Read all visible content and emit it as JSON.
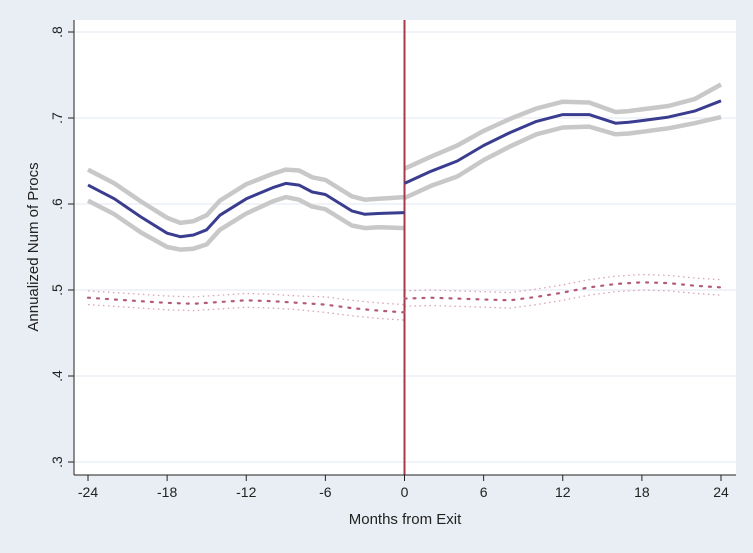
{
  "chart_data": {
    "type": "line",
    "xlabel": "Months from Exit",
    "ylabel": "Annualized Num of Procs",
    "xlim": [
      -24,
      24
    ],
    "ylim": [
      0.3,
      0.8
    ],
    "x_ticks": [
      -24,
      -18,
      -12,
      -6,
      0,
      6,
      12,
      18,
      24
    ],
    "x_tick_labels": [
      "-24",
      "-18",
      "-12",
      "-6",
      "0",
      "6",
      "12",
      "18",
      "24"
    ],
    "y_ticks": [
      0.3,
      0.4,
      0.5,
      0.6,
      0.7,
      0.8
    ],
    "y_tick_labels": [
      ".3",
      ".4",
      ".5",
      ".6",
      ".7",
      ".8"
    ],
    "grid": "horizontal",
    "vline_x": 0,
    "colors": {
      "treated": "#3a3d8f",
      "control": "#b35a78",
      "ci_band": "#c8c8c8",
      "vline": "#a63a4a",
      "background": "#e8eef3",
      "plot_area": "#ffffff",
      "grid": "#e8eef3"
    },
    "series": [
      {
        "style": "solid",
        "segments": [
          {
            "x": [
              -24,
              -22,
              -20,
              -18,
              -17,
              -16,
              -15,
              -14,
              -12,
              -10,
              -9,
              -8,
              -7,
              -6,
              -4,
              -3,
              -2,
              0
            ],
            "y": [
              0.622,
              0.606,
              0.585,
              0.566,
              0.562,
              0.564,
              0.57,
              0.587,
              0.606,
              0.619,
              0.624,
              0.622,
              0.614,
              0.611,
              0.592,
              0.588,
              0.589,
              0.59
            ],
            "lower": [
              0.604,
              0.588,
              0.567,
              0.55,
              0.547,
              0.548,
              0.553,
              0.57,
              0.589,
              0.603,
              0.608,
              0.605,
              0.597,
              0.594,
              0.575,
              0.572,
              0.573,
              0.572
            ],
            "upper": [
              0.64,
              0.624,
              0.603,
              0.584,
              0.578,
              0.58,
              0.587,
              0.604,
              0.623,
              0.635,
              0.64,
              0.639,
              0.631,
              0.628,
              0.609,
              0.605,
              0.606,
              0.608
            ]
          },
          {
            "x": [
              0,
              2,
              4,
              6,
              8,
              10,
              12,
              14,
              16,
              17,
              18,
              20,
              22,
              24
            ],
            "y": [
              0.624,
              0.638,
              0.65,
              0.668,
              0.683,
              0.696,
              0.704,
              0.704,
              0.694,
              0.695,
              0.697,
              0.701,
              0.708,
              0.72
            ],
            "lower": [
              0.607,
              0.621,
              0.632,
              0.651,
              0.667,
              0.681,
              0.689,
              0.69,
              0.681,
              0.682,
              0.684,
              0.688,
              0.694,
              0.701
            ],
            "upper": [
              0.641,
              0.655,
              0.668,
              0.685,
              0.699,
              0.711,
              0.719,
              0.718,
              0.707,
              0.708,
              0.71,
              0.714,
              0.722,
              0.739
            ]
          }
        ]
      },
      {
        "style": "dotted",
        "segments": [
          {
            "x": [
              -24,
              -22,
              -20,
              -18,
              -16,
              -14,
              -12,
              -10,
              -8,
              -6,
              -4,
              -2,
              0
            ],
            "y": [
              0.491,
              0.489,
              0.487,
              0.485,
              0.484,
              0.486,
              0.488,
              0.487,
              0.485,
              0.483,
              0.479,
              0.476,
              0.474
            ],
            "lower": [
              0.483,
              0.481,
              0.479,
              0.477,
              0.476,
              0.478,
              0.48,
              0.479,
              0.477,
              0.474,
              0.47,
              0.467,
              0.465
            ],
            "upper": [
              0.499,
              0.497,
              0.495,
              0.493,
              0.492,
              0.494,
              0.496,
              0.495,
              0.493,
              0.492,
              0.488,
              0.485,
              0.483
            ]
          },
          {
            "x": [
              0,
              2,
              4,
              6,
              8,
              10,
              12,
              14,
              16,
              18,
              20,
              22,
              24
            ],
            "y": [
              0.49,
              0.491,
              0.49,
              0.489,
              0.488,
              0.492,
              0.497,
              0.503,
              0.507,
              0.509,
              0.508,
              0.505,
              0.503
            ],
            "lower": [
              0.481,
              0.482,
              0.481,
              0.48,
              0.479,
              0.483,
              0.488,
              0.494,
              0.498,
              0.5,
              0.499,
              0.496,
              0.494
            ],
            "upper": [
              0.499,
              0.5,
              0.499,
              0.498,
              0.497,
              0.501,
              0.506,
              0.512,
              0.516,
              0.518,
              0.517,
              0.514,
              0.512
            ]
          }
        ]
      }
    ]
  }
}
